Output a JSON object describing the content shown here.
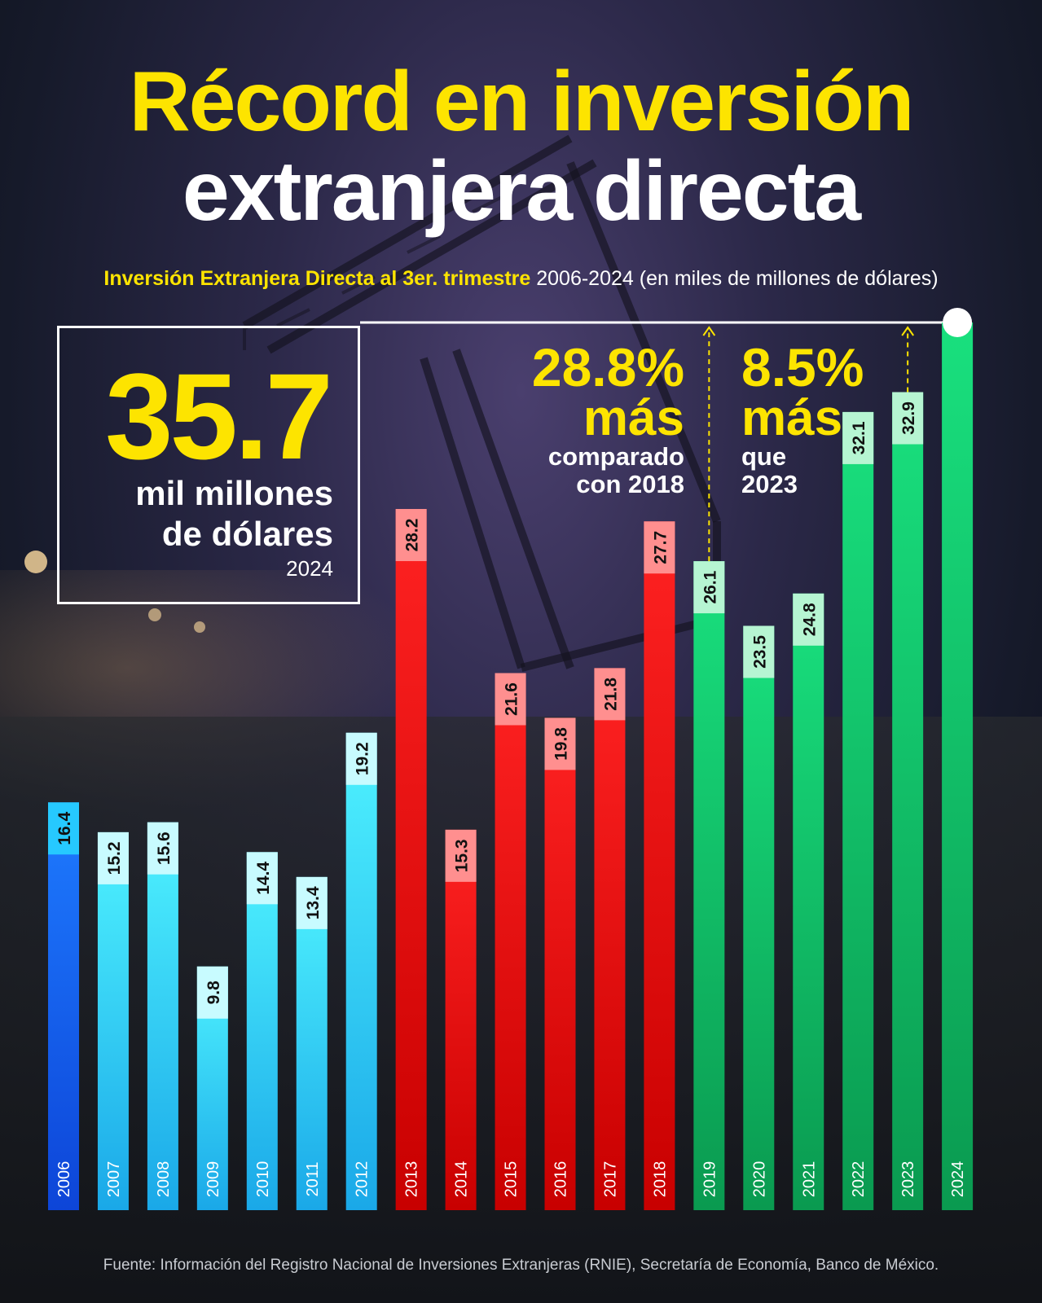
{
  "title_line1": "Récord en inversión",
  "title_line2": "extranjera directa",
  "subtitle_highlight": "Inversión Extranjera Directa al 3er. trimestre",
  "subtitle_rest": " 2006-2024 (en miles de millones de dólares)",
  "hero": {
    "value": "35.7",
    "unit_line1": "mil millones",
    "unit_line2": "de dólares",
    "year": "2024"
  },
  "comparison_2018": {
    "value": "28.8%",
    "word": "más",
    "line1": "comparado",
    "line2": "con 2018"
  },
  "comparison_2023": {
    "value": "8.5%",
    "word": "más",
    "line1": "que",
    "line2": "2023"
  },
  "source": "Fuente: Información del Registro Nacional de Inversiones Extranjeras (RNIE), Secretaría de Economía, Banco de México.",
  "colors": {
    "accent": "#fde400",
    "blue_dark": "#1565ff",
    "cyan": "#35e6ff",
    "red": "#ff1a1a",
    "green": "#11c86a"
  },
  "chart_data": {
    "type": "bar",
    "categories": [
      "2006",
      "2007",
      "2008",
      "2009",
      "2010",
      "2011",
      "2012",
      "2013",
      "2014",
      "2015",
      "2016",
      "2017",
      "2018",
      "2019",
      "2020",
      "2021",
      "2022",
      "2023",
      "2024"
    ],
    "values": [
      16.4,
      15.2,
      15.6,
      9.8,
      14.4,
      13.4,
      19.2,
      28.2,
      15.3,
      21.6,
      19.8,
      21.8,
      27.7,
      26.1,
      23.5,
      24.8,
      32.1,
      32.9,
      35.7
    ],
    "value_labels": [
      "16.4",
      "15.2",
      "15.6",
      "9.8",
      "14.4",
      "13.4",
      "19.2",
      "28.2",
      "15.3",
      "21.6",
      "19.8",
      "21.8",
      "27.7",
      "26.1",
      "23.5",
      "24.8",
      "32.1",
      "32.9",
      ""
    ],
    "color_groups": [
      "blue",
      "cyan",
      "cyan",
      "cyan",
      "cyan",
      "cyan",
      "cyan",
      "red",
      "red",
      "red",
      "red",
      "red",
      "red",
      "green",
      "green",
      "green",
      "green",
      "green",
      "green"
    ],
    "ylim": [
      0,
      35.7
    ],
    "grid": false,
    "legend": "none"
  }
}
